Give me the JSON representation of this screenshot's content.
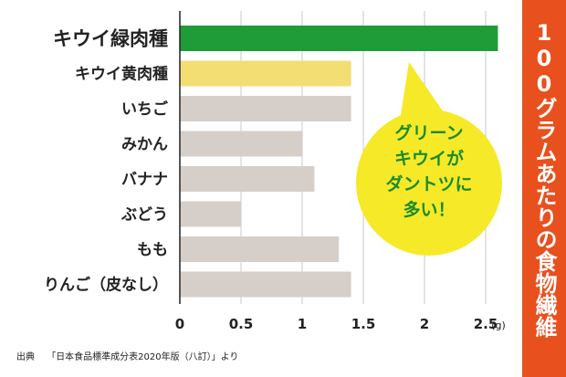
{
  "side_title": "100グラムあたりの食物繊維",
  "callout_lines": [
    "グリーン",
    "キウイが",
    "ダントツに",
    "多い！"
  ],
  "source_note": {
    "prefix": "出典",
    "text": "「日本食品標準成分表2020年版（八訂）」より"
  },
  "colors": {
    "highlight": "#1f9b38",
    "secondary": "#f2de73",
    "default": "#d6cfc9",
    "banner": "#e8501e",
    "bubble": "#f6e928"
  },
  "chart_data": {
    "type": "bar",
    "orientation": "horizontal",
    "categories": [
      "キウイ緑肉種",
      "キウイ黄肉種",
      "いちご",
      "みかん",
      "バナナ",
      "ぶどう",
      "もも",
      "りんご（皮なし）"
    ],
    "values": [
      2.6,
      1.4,
      1.4,
      1.0,
      1.1,
      0.5,
      1.3,
      1.4
    ],
    "unit": "(g)",
    "xticks": [
      0,
      0.5,
      1,
      1.5,
      2,
      2.5
    ],
    "xtick_labels": [
      "0",
      "0.5",
      "1",
      "1.5",
      "2",
      "2.5"
    ],
    "xlim": [
      0,
      2.65
    ],
    "grid": true
  }
}
